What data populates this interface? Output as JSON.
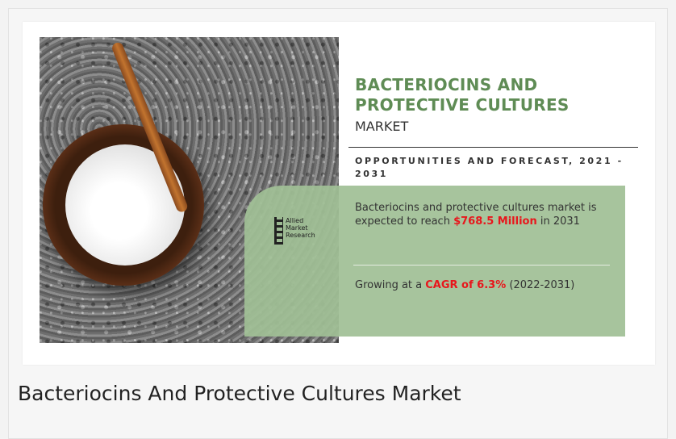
{
  "infographic": {
    "title": "BACTERIOCINS AND PROTECTIVE CULTURES",
    "subtitle": "MARKET",
    "forecast_heading": "OPPORTUNITIES AND FORECAST, 2021 - 2031",
    "logo_lines": [
      "Allied",
      "Market",
      "Research"
    ],
    "stat1_prefix": "Bacteriocins and protective cultures market is expected to reach ",
    "stat1_value": "$768.5 Million",
    "stat1_suffix": " in 2031",
    "stat2_prefix": "Growing at a ",
    "stat2_value": "CAGR of 6.3%",
    "stat2_suffix": " (2022-2031)",
    "accent_green": "#5f8c55",
    "panel_green": "#a0c096",
    "highlight_red": "#e8161c"
  },
  "caption": "Bacteriocins And Protective Cultures Market"
}
